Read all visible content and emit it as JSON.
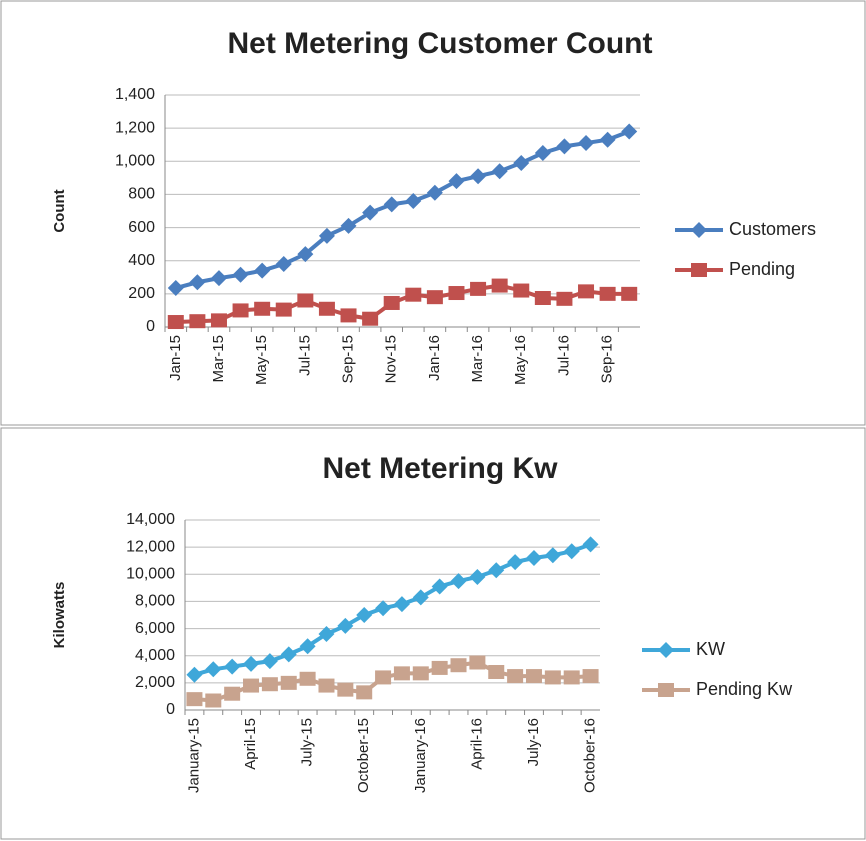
{
  "chart_data": [
    {
      "type": "line",
      "title": "Net Metering Customer Count",
      "y_label": "Count",
      "categories": [
        "Jan-15",
        null,
        "Mar-15",
        null,
        "May-15",
        null,
        "Jul-15",
        null,
        "Sep-15",
        null,
        "Nov-15",
        null,
        "Jan-16",
        null,
        "Mar-16",
        null,
        "May-16",
        null,
        "Jul-16",
        null,
        "Sep-16",
        null
      ],
      "series": [
        {
          "name": "Customers",
          "color": "#4a7ebf",
          "marker": "diamond",
          "values": [
            235,
            270,
            295,
            315,
            340,
            380,
            440,
            550,
            610,
            690,
            740,
            760,
            810,
            880,
            910,
            940,
            990,
            1050,
            1090,
            1110,
            1130,
            1180
          ]
        },
        {
          "name": "Pending",
          "color": "#c0504d",
          "marker": "square",
          "values": [
            30,
            35,
            40,
            100,
            110,
            105,
            160,
            110,
            70,
            50,
            145,
            195,
            180,
            205,
            230,
            250,
            220,
            175,
            170,
            215,
            200,
            200
          ]
        }
      ],
      "ylim": [
        0,
        1400
      ],
      "yticks": [
        0,
        200,
        400,
        600,
        800,
        {
          "value": 1000,
          "label": "1,000"
        },
        {
          "value": 1200,
          "label": "1,200"
        },
        {
          "value": 1400,
          "label": "1,400"
        }
      ],
      "grid": true,
      "legend": "right"
    },
    {
      "type": "line",
      "title": "Net Metering Kw",
      "y_label": "Kilowatts",
      "categories": [
        "January-15",
        null,
        null,
        "April-15",
        null,
        null,
        "July-15",
        null,
        null,
        "October-15",
        null,
        null,
        "January-16",
        null,
        null,
        "April-16",
        null,
        null,
        "July-16",
        null,
        null,
        "October-16"
      ],
      "series": [
        {
          "name": "KW",
          "color": "#3fa7d9",
          "marker": "diamond",
          "values": [
            2600,
            3000,
            3200,
            3400,
            3600,
            4100,
            4700,
            5600,
            6200,
            7000,
            7500,
            7800,
            8300,
            9100,
            9500,
            9800,
            10300,
            10900,
            11200,
            11400,
            11700,
            12200
          ]
        },
        {
          "name": "Pending Kw",
          "color": "#c8a38e",
          "marker": "square",
          "values": [
            800,
            700,
            1200,
            1800,
            1900,
            2000,
            2300,
            1800,
            1500,
            1300,
            2400,
            2700,
            2700,
            3100,
            3300,
            3500,
            2800,
            2500,
            2500,
            2400,
            2400,
            2500
          ]
        }
      ],
      "ylim": [
        0,
        14000
      ],
      "yticks": [
        0,
        {
          "value": 2000,
          "label": "2,000"
        },
        {
          "value": 4000,
          "label": "4,000"
        },
        {
          "value": 6000,
          "label": "6,000"
        },
        {
          "value": 8000,
          "label": "8,000"
        },
        {
          "value": 10000,
          "label": "10,000"
        },
        {
          "value": 12000,
          "label": "12,000"
        },
        {
          "value": 14000,
          "label": "14,000"
        }
      ],
      "grid": true,
      "legend": "right"
    }
  ]
}
